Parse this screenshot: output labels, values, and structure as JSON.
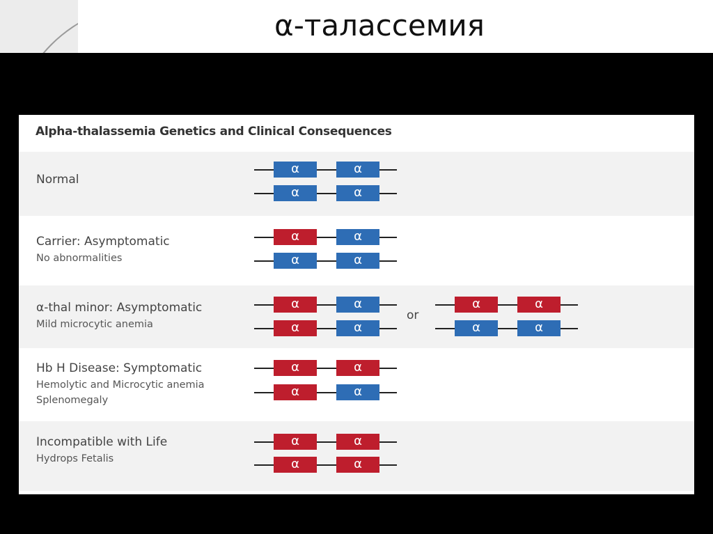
{
  "slide_title": "α-талассемия",
  "diagram": {
    "title": "Alpha-thalassemia Genetics and Clinical Consequences",
    "gene_label": "α",
    "or_label": "or",
    "colors": {
      "normal_gene": "#2e6db5",
      "deleted_gene": "#be1e2d"
    },
    "rows": [
      {
        "label": "Normal",
        "sublines": [],
        "chromosomes": [
          [
            "blue",
            "blue"
          ],
          [
            "blue",
            "blue"
          ]
        ]
      },
      {
        "label": "Carrier: Asymptomatic",
        "sublines": [
          "No abnormalities"
        ],
        "chromosomes": [
          [
            "red",
            "blue"
          ],
          [
            "blue",
            "blue"
          ]
        ]
      },
      {
        "label": "α-thal minor: Asymptomatic",
        "sublines": [
          "Mild microcytic anemia"
        ],
        "chromosomes": [
          [
            "red",
            "blue"
          ],
          [
            "red",
            "blue"
          ]
        ],
        "alternative": [
          [
            "red",
            "red"
          ],
          [
            "blue",
            "blue"
          ]
        ]
      },
      {
        "label": "Hb H Disease: Symptomatic",
        "sublines": [
          "Hemolytic and Microcytic anemia",
          "Splenomegaly"
        ],
        "chromosomes": [
          [
            "red",
            "red"
          ],
          [
            "red",
            "blue"
          ]
        ]
      },
      {
        "label": "Incompatible with Life",
        "sublines": [
          "Hydrops Fetalis"
        ],
        "chromosomes": [
          [
            "red",
            "red"
          ],
          [
            "red",
            "red"
          ]
        ]
      }
    ]
  }
}
